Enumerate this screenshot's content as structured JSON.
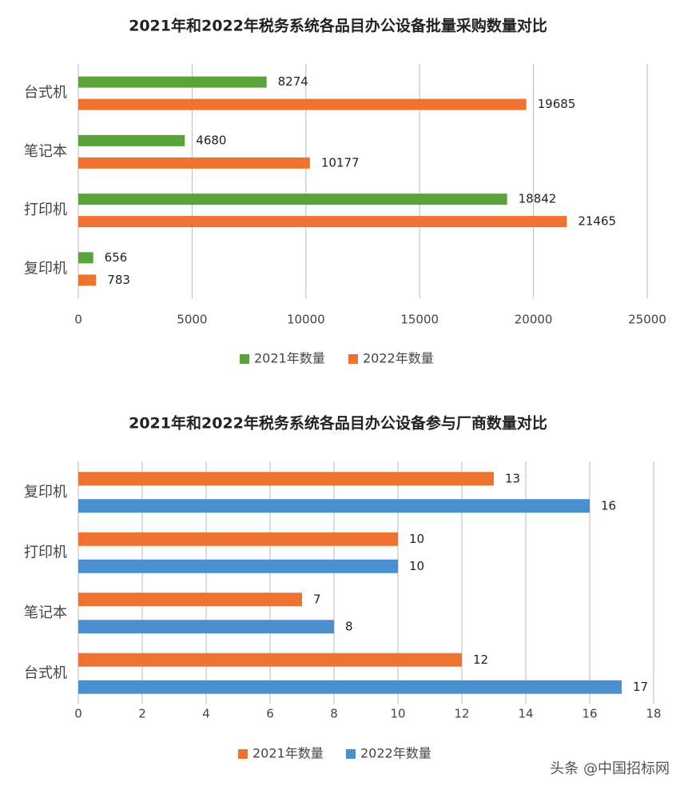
{
  "chart_data": [
    {
      "type": "bar",
      "orientation": "horizontal",
      "title": "2021年和2022年税务系统各品目办公设备批量采购数量对比",
      "categories": [
        "台式机",
        "笔记本",
        "打印机",
        "复印机"
      ],
      "series": [
        {
          "name": "2021年数量",
          "color": "#5aa33a",
          "values": [
            8274,
            4680,
            18842,
            656
          ]
        },
        {
          "name": "2022年数量",
          "color": "#ee7330",
          "values": [
            19685,
            10177,
            21465,
            783
          ]
        }
      ],
      "xlim": [
        0,
        25000
      ],
      "xticks": [
        0,
        5000,
        10000,
        15000,
        20000,
        25000
      ],
      "grid": true,
      "legend": "bottom"
    },
    {
      "type": "bar",
      "orientation": "horizontal",
      "title": "2021年和2022年税务系统各品目办公设备参与厂商数量对比",
      "categories": [
        "复印机",
        "打印机",
        "笔记本",
        "台式机"
      ],
      "series": [
        {
          "name": "2021年数量",
          "color": "#ee7330",
          "values": [
            13,
            10,
            7,
            12
          ]
        },
        {
          "name": "2022年数量",
          "color": "#4a8fd0",
          "values": [
            16,
            10,
            8,
            17
          ]
        }
      ],
      "xlim": [
        0,
        18
      ],
      "xticks": [
        0,
        2,
        4,
        6,
        8,
        10,
        12,
        14,
        16,
        18
      ],
      "grid": true,
      "legend": "bottom"
    }
  ],
  "watermark": "头条 @中国招标网"
}
